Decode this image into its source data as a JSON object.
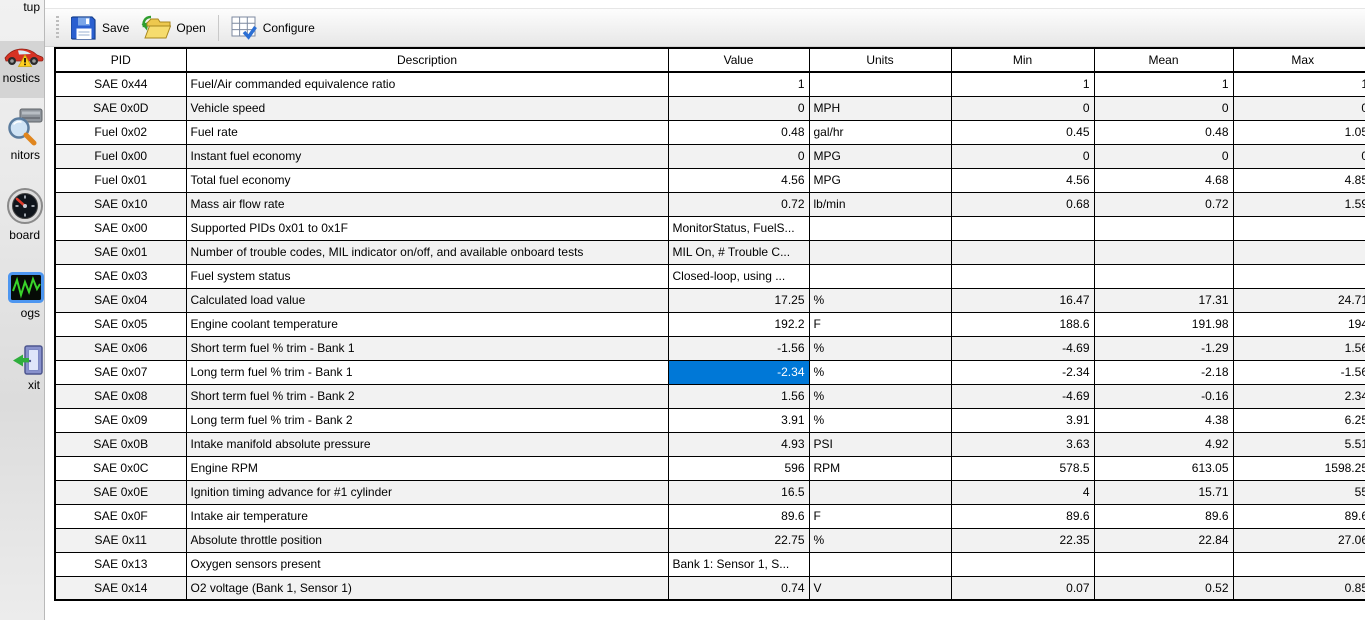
{
  "colors": {
    "selection": "#0078d7",
    "row_alt": "#f2f2f2",
    "grid_line": "#000000",
    "sidebar_highlight": "#d4d4d4"
  },
  "sidebar": {
    "items": [
      {
        "id": "setup",
        "label": "tup"
      },
      {
        "id": "diagnostics",
        "label": "nostics",
        "highlighted": true
      },
      {
        "id": "monitors",
        "label": "nitors"
      },
      {
        "id": "dashboard",
        "label": "board"
      },
      {
        "id": "logs",
        "label": "ogs",
        "icon_selected": true
      },
      {
        "id": "exit",
        "label": "xit"
      }
    ]
  },
  "toolbar": {
    "save": "Save",
    "open": "Open",
    "configure": "Configure"
  },
  "table": {
    "columns": [
      "PID",
      "Description",
      "Value",
      "Units",
      "Min",
      "Mean",
      "Max"
    ],
    "selected": {
      "pid": "SAE 0x07",
      "column": "value"
    },
    "rows": [
      {
        "pid": "SAE 0x44",
        "description": "Fuel/Air commanded equivalence ratio",
        "value": "1",
        "units": "",
        "min": "1",
        "mean": "1",
        "max": "1"
      },
      {
        "pid": "SAE 0x0D",
        "description": "Vehicle speed",
        "value": "0",
        "units": "MPH",
        "min": "0",
        "mean": "0",
        "max": "0"
      },
      {
        "pid": "Fuel 0x02",
        "description": "Fuel rate",
        "value": "0.48",
        "units": "gal/hr",
        "min": "0.45",
        "mean": "0.48",
        "max": "1.05"
      },
      {
        "pid": "Fuel 0x00",
        "description": "Instant fuel economy",
        "value": "0",
        "units": "MPG",
        "min": "0",
        "mean": "0",
        "max": "0"
      },
      {
        "pid": "Fuel 0x01",
        "description": "Total fuel economy",
        "value": "4.56",
        "units": "MPG",
        "min": "4.56",
        "mean": "4.68",
        "max": "4.85"
      },
      {
        "pid": "SAE 0x10",
        "description": "Mass air flow rate",
        "value": "0.72",
        "units": "lb/min",
        "min": "0.68",
        "mean": "0.72",
        "max": "1.59"
      },
      {
        "pid": "SAE 0x00",
        "description": "Supported PIDs 0x01 to 0x1F",
        "value": "MonitorStatus, FuelS...",
        "units": "",
        "min": "",
        "mean": "",
        "max": ""
      },
      {
        "pid": "SAE 0x01",
        "description": "Number of trouble codes, MIL indicator on/off, and available onboard tests",
        "value": "MIL On, # Trouble C...",
        "units": "",
        "min": "",
        "mean": "",
        "max": ""
      },
      {
        "pid": "SAE 0x03",
        "description": "Fuel system status",
        "value": "Closed-loop, using ...",
        "units": "",
        "min": "",
        "mean": "",
        "max": ""
      },
      {
        "pid": "SAE 0x04",
        "description": "Calculated load value",
        "value": "17.25",
        "units": "%",
        "min": "16.47",
        "mean": "17.31",
        "max": "24.71"
      },
      {
        "pid": "SAE 0x05",
        "description": "Engine coolant temperature",
        "value": "192.2",
        "units": "F",
        "min": "188.6",
        "mean": "191.98",
        "max": "194"
      },
      {
        "pid": "SAE 0x06",
        "description": "Short term fuel % trim - Bank 1",
        "value": "-1.56",
        "units": "%",
        "min": "-4.69",
        "mean": "-1.29",
        "max": "1.56"
      },
      {
        "pid": "SAE 0x07",
        "description": "Long term fuel % trim - Bank 1",
        "value": "-2.34",
        "units": "%",
        "min": "-2.34",
        "mean": "-2.18",
        "max": "-1.56"
      },
      {
        "pid": "SAE 0x08",
        "description": "Short term fuel % trim - Bank 2",
        "value": "1.56",
        "units": "%",
        "min": "-4.69",
        "mean": "-0.16",
        "max": "2.34"
      },
      {
        "pid": "SAE 0x09",
        "description": "Long term fuel % trim - Bank 2",
        "value": "3.91",
        "units": "%",
        "min": "3.91",
        "mean": "4.38",
        "max": "6.25"
      },
      {
        "pid": "SAE 0x0B",
        "description": "Intake manifold absolute pressure",
        "value": "4.93",
        "units": "PSI",
        "min": "3.63",
        "mean": "4.92",
        "max": "5.51"
      },
      {
        "pid": "SAE 0x0C",
        "description": "Engine RPM",
        "value": "596",
        "units": "RPM",
        "min": "578.5",
        "mean": "613.05",
        "max": "1598.25"
      },
      {
        "pid": "SAE 0x0E",
        "description": "Ignition timing advance for #1 cylinder",
        "value": "16.5",
        "units": "",
        "min": "4",
        "mean": "15.71",
        "max": "55"
      },
      {
        "pid": "SAE 0x0F",
        "description": "Intake air temperature",
        "value": "89.6",
        "units": "F",
        "min": "89.6",
        "mean": "89.6",
        "max": "89.6"
      },
      {
        "pid": "SAE 0x11",
        "description": "Absolute throttle position",
        "value": "22.75",
        "units": "%",
        "min": "22.35",
        "mean": "22.84",
        "max": "27.06"
      },
      {
        "pid": "SAE 0x13",
        "description": "Oxygen sensors present",
        "value": "Bank 1: Sensor 1, S...",
        "units": "",
        "min": "",
        "mean": "",
        "max": ""
      },
      {
        "pid": "SAE 0x14",
        "description": "O2 voltage (Bank 1, Sensor 1)",
        "value": "0.74",
        "units": "V",
        "min": "0.07",
        "mean": "0.52",
        "max": "0.85"
      }
    ]
  }
}
